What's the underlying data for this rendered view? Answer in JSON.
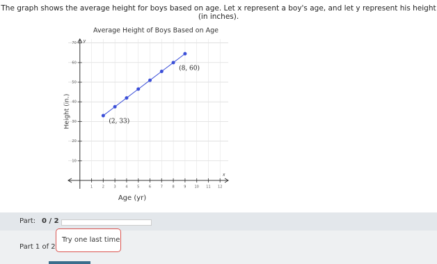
{
  "problem": {
    "text": "The graph shows the average height for boys based on age. Let x represent a boy's age, and let y represent his height (in inches)."
  },
  "chart_data": {
    "type": "line",
    "title": "Average Height of Boys Based on Age",
    "x_label": "Age (yr)",
    "y_label": "Height (in.)",
    "x_axis_name": "x",
    "y_axis_name": "y",
    "x": [
      2,
      3,
      4,
      5,
      6,
      7,
      8,
      9
    ],
    "series": [
      {
        "color": "#3b4fd8",
        "values": [
          33,
          37.5,
          42,
          46.5,
          51,
          55.5,
          60,
          64.5
        ]
      }
    ],
    "annotations": [
      {
        "text": "(2, 33)",
        "x": 2,
        "y": 33
      },
      {
        "text": "(8, 60)",
        "x": 8,
        "y": 60
      }
    ],
    "xlim": [
      -1,
      12.7
    ],
    "ylim": [
      0,
      72
    ],
    "xticks": [
      1,
      2,
      3,
      4,
      5,
      6,
      7,
      8,
      9,
      10,
      11,
      12
    ],
    "yticks": [
      10,
      20,
      30,
      40,
      50,
      60,
      70
    ],
    "grid": true
  },
  "status": {
    "part_label": "Part:",
    "part_value": "0 / 2",
    "part_indicator": "Part 1 of 2",
    "feedback": "Try one last time"
  }
}
